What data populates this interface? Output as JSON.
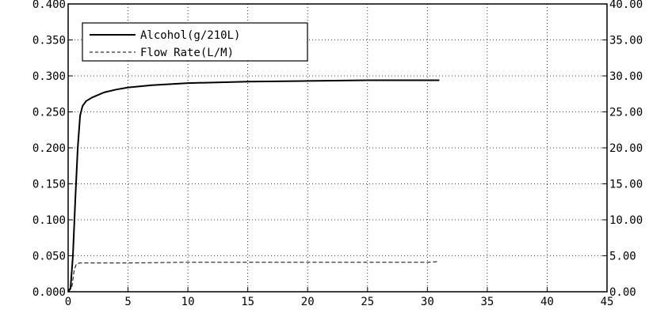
{
  "chart_data": {
    "type": "line",
    "title": "",
    "xlabel": "",
    "ylabel": "",
    "y2label": "",
    "xlim": [
      0,
      45
    ],
    "ylim": [
      0,
      0.4
    ],
    "y2lim": [
      0,
      40
    ],
    "grid": true,
    "legend_position": "top-left",
    "x_ticks": [
      "0",
      "5",
      "10",
      "15",
      "20",
      "25",
      "30",
      "35",
      "40",
      "45"
    ],
    "y_ticks": [
      "0.000",
      "0.050",
      "0.100",
      "0.150",
      "0.200",
      "0.250",
      "0.300",
      "0.350",
      "0.400"
    ],
    "y2_ticks": [
      "0.00",
      "5.00",
      "10.00",
      "15.00",
      "20.00",
      "25.00",
      "30.00",
      "35.00",
      "40.00"
    ],
    "series": [
      {
        "name": "Alcohol(g/210L)",
        "axis": "left",
        "style": "solid",
        "x": [
          0,
          0.2,
          0.4,
          0.6,
          0.8,
          1.0,
          1.2,
          1.5,
          2,
          3,
          4,
          5,
          7,
          10,
          15,
          20,
          25,
          30,
          31
        ],
        "y": [
          0.0,
          0.005,
          0.05,
          0.13,
          0.2,
          0.245,
          0.258,
          0.265,
          0.27,
          0.277,
          0.281,
          0.284,
          0.287,
          0.29,
          0.292,
          0.293,
          0.294,
          0.294,
          0.294
        ]
      },
      {
        "name": "Flow Rate(L/M)",
        "axis": "right",
        "style": "dashed",
        "x": [
          0,
          0.3,
          0.5,
          0.7,
          1.0,
          5,
          10,
          15,
          20,
          25,
          30,
          31
        ],
        "y": [
          0.0,
          0.5,
          3.0,
          3.9,
          4.0,
          4.0,
          4.1,
          4.1,
          4.1,
          4.1,
          4.1,
          4.2
        ]
      }
    ]
  }
}
